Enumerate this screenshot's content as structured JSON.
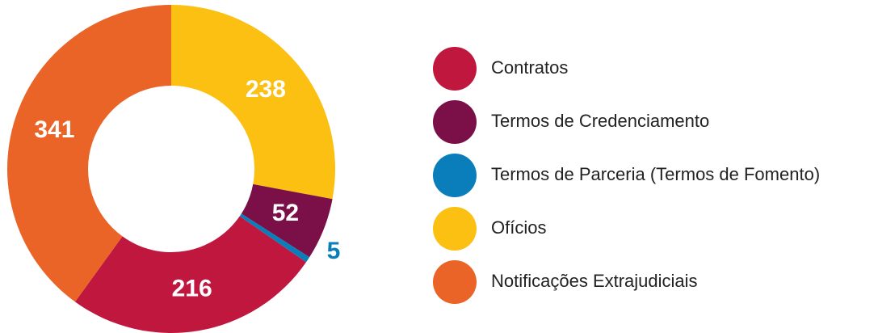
{
  "chart_data": {
    "type": "donut",
    "categories": [
      "Contratos",
      "Termos de Credenciamento",
      "Termos de Parceria (Termos de Fomento)",
      "Ofícios",
      "Notificações Extrajudiciais"
    ],
    "values": [
      216,
      52,
      5,
      238,
      341
    ],
    "colors": [
      "#c0173f",
      "#7b1048",
      "#0a7dbb",
      "#fcc012",
      "#ea6428"
    ]
  }
}
